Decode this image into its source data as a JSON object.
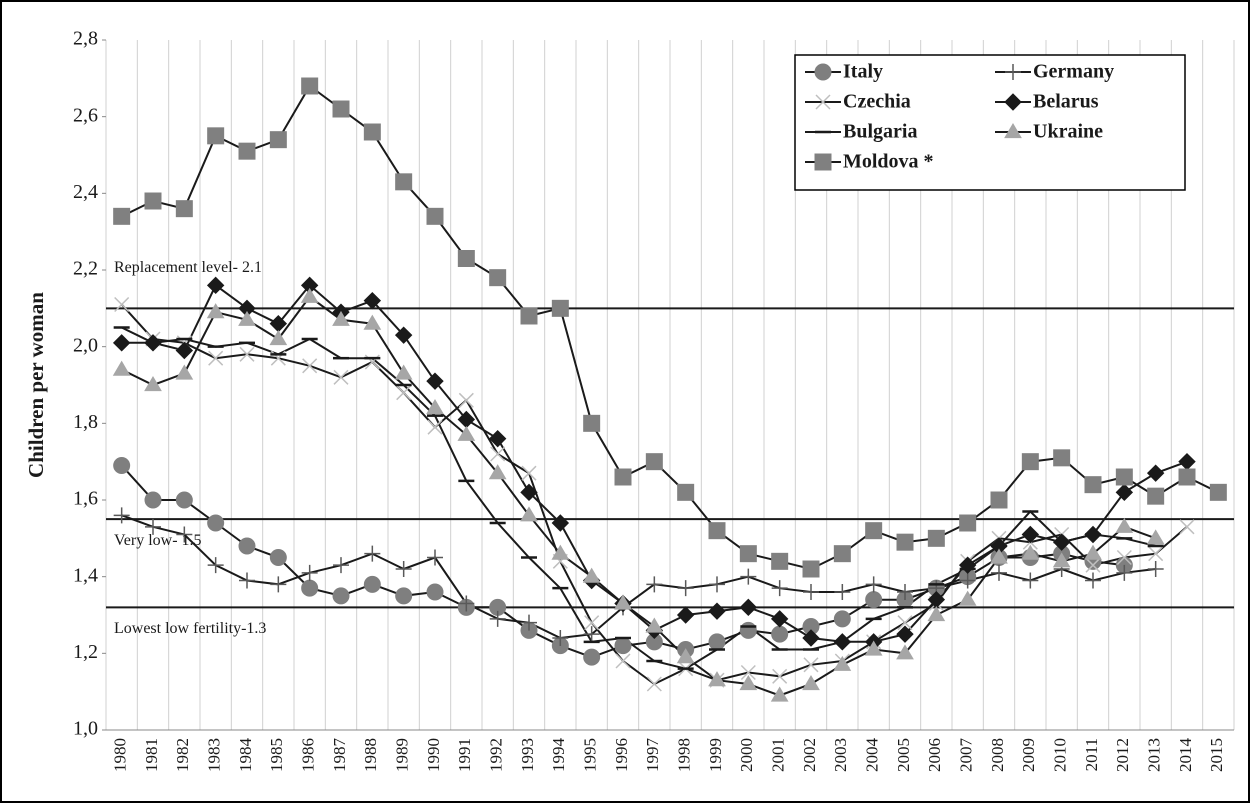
{
  "chart_data": {
    "type": "line",
    "y_label": "Children per woman",
    "categories": [
      "1980",
      "1981",
      "1982",
      "1983",
      "1984",
      "1985",
      "1986",
      "1987",
      "1988",
      "1989",
      "1990",
      "1991",
      "1992",
      "1993",
      "1994",
      "1995",
      "1996",
      "1997",
      "1998",
      "1999",
      "2000",
      "2001",
      "2002",
      "2003",
      "2004",
      "2005",
      "2006",
      "2007",
      "2008",
      "2009",
      "2010",
      "2011",
      "2012",
      "2013",
      "2014",
      "2015"
    ],
    "series": [
      {
        "name": "Italy",
        "color": "#7f7f7f",
        "marker": "circle",
        "values": [
          1.69,
          1.6,
          1.6,
          1.54,
          1.48,
          1.45,
          1.37,
          1.35,
          1.38,
          1.35,
          1.36,
          1.32,
          1.32,
          1.26,
          1.22,
          1.19,
          1.22,
          1.23,
          1.21,
          1.23,
          1.26,
          1.25,
          1.27,
          1.29,
          1.34,
          1.34,
          1.37,
          1.4,
          1.45,
          1.45,
          1.46,
          1.44,
          1.43,
          null,
          null,
          null
        ]
      },
      {
        "name": "Germany",
        "color": "#595959",
        "marker": "plus",
        "values": [
          1.56,
          1.53,
          1.51,
          1.43,
          1.39,
          1.38,
          1.41,
          1.43,
          1.46,
          1.42,
          1.45,
          1.33,
          1.29,
          1.28,
          1.24,
          1.25,
          1.32,
          1.38,
          1.37,
          1.38,
          1.4,
          1.37,
          1.36,
          1.36,
          1.38,
          1.36,
          1.37,
          1.39,
          1.41,
          1.39,
          1.42,
          1.39,
          1.41,
          1.42,
          null,
          null
        ]
      },
      {
        "name": "Czechia",
        "color": "#bfbfbf",
        "marker": "x",
        "values": [
          2.11,
          2.02,
          2.01,
          1.97,
          1.98,
          1.97,
          1.95,
          1.92,
          1.96,
          1.88,
          1.79,
          1.86,
          1.72,
          1.67,
          1.44,
          1.28,
          1.18,
          1.12,
          1.16,
          1.13,
          1.15,
          1.14,
          1.17,
          1.18,
          1.23,
          1.28,
          1.33,
          1.44,
          1.5,
          1.49,
          1.51,
          1.43,
          1.45,
          1.46,
          1.53,
          null
        ]
      },
      {
        "name": "Belarus",
        "color": "#1a1a1a",
        "marker": "diamond",
        "values": [
          2.01,
          2.01,
          1.99,
          2.16,
          2.1,
          2.06,
          2.16,
          2.09,
          2.12,
          2.03,
          1.91,
          1.81,
          1.76,
          1.62,
          1.54,
          1.39,
          1.33,
          1.26,
          1.3,
          1.31,
          1.32,
          1.29,
          1.24,
          1.23,
          1.23,
          1.25,
          1.34,
          1.43,
          1.48,
          1.51,
          1.49,
          1.51,
          1.62,
          1.67,
          1.7,
          null
        ]
      },
      {
        "name": "Bulgaria",
        "color": "#1a1a1a",
        "marker": "dash",
        "values": [
          2.05,
          2.01,
          2.02,
          2.0,
          2.01,
          1.98,
          2.02,
          1.97,
          1.97,
          1.9,
          1.82,
          1.65,
          1.54,
          1.45,
          1.37,
          1.23,
          1.24,
          1.18,
          1.16,
          1.21,
          1.27,
          1.21,
          1.21,
          1.23,
          1.29,
          1.32,
          1.38,
          1.42,
          1.48,
          1.57,
          1.49,
          1.51,
          1.5,
          1.48,
          null,
          null
        ]
      },
      {
        "name": "Ukraine",
        "color": "#a6a6a6",
        "marker": "triangle",
        "values": [
          1.94,
          1.9,
          1.93,
          2.09,
          2.07,
          2.02,
          2.13,
          2.07,
          2.06,
          1.93,
          1.84,
          1.77,
          1.67,
          1.56,
          1.46,
          1.4,
          1.33,
          1.27,
          1.19,
          1.13,
          1.12,
          1.09,
          1.12,
          1.17,
          1.21,
          1.2,
          1.3,
          1.34,
          1.45,
          1.46,
          1.44,
          1.46,
          1.53,
          1.5,
          null,
          null
        ]
      },
      {
        "name": "Moldova *",
        "color": "#808080",
        "marker": "square",
        "values": [
          2.34,
          2.38,
          2.36,
          2.55,
          2.51,
          2.54,
          2.68,
          2.62,
          2.56,
          2.43,
          2.34,
          2.23,
          2.18,
          2.08,
          2.1,
          1.8,
          1.66,
          1.7,
          1.62,
          1.52,
          1.46,
          1.44,
          1.42,
          1.46,
          1.52,
          1.49,
          1.5,
          1.54,
          1.6,
          1.7,
          1.71,
          1.64,
          1.66,
          1.61,
          1.66,
          1.62
        ]
      }
    ],
    "line_color": "#1a1a1a",
    "ylim": [
      1.0,
      2.8
    ],
    "yticks": [
      {
        "value": 1.0,
        "label": "1,0"
      },
      {
        "value": 1.2,
        "label": "1,2"
      },
      {
        "value": 1.4,
        "label": "1,4"
      },
      {
        "value": 1.6,
        "label": "1,6"
      },
      {
        "value": 1.8,
        "label": "1,8"
      },
      {
        "value": 2.0,
        "label": "2,0"
      },
      {
        "value": 2.2,
        "label": "2,2"
      },
      {
        "value": 2.4,
        "label": "2,4"
      },
      {
        "value": 2.6,
        "label": "2,6"
      },
      {
        "value": 2.8,
        "label": "2,8"
      }
    ],
    "reference_lines": [
      {
        "value": 2.1,
        "label": "Replacement level- 2.1"
      },
      {
        "value": 1.55,
        "label": "Very low- 1.5"
      },
      {
        "value": 1.32,
        "label": "Lowest low fertility-1.3"
      }
    ],
    "grid": "x",
    "legend": "upper right"
  }
}
